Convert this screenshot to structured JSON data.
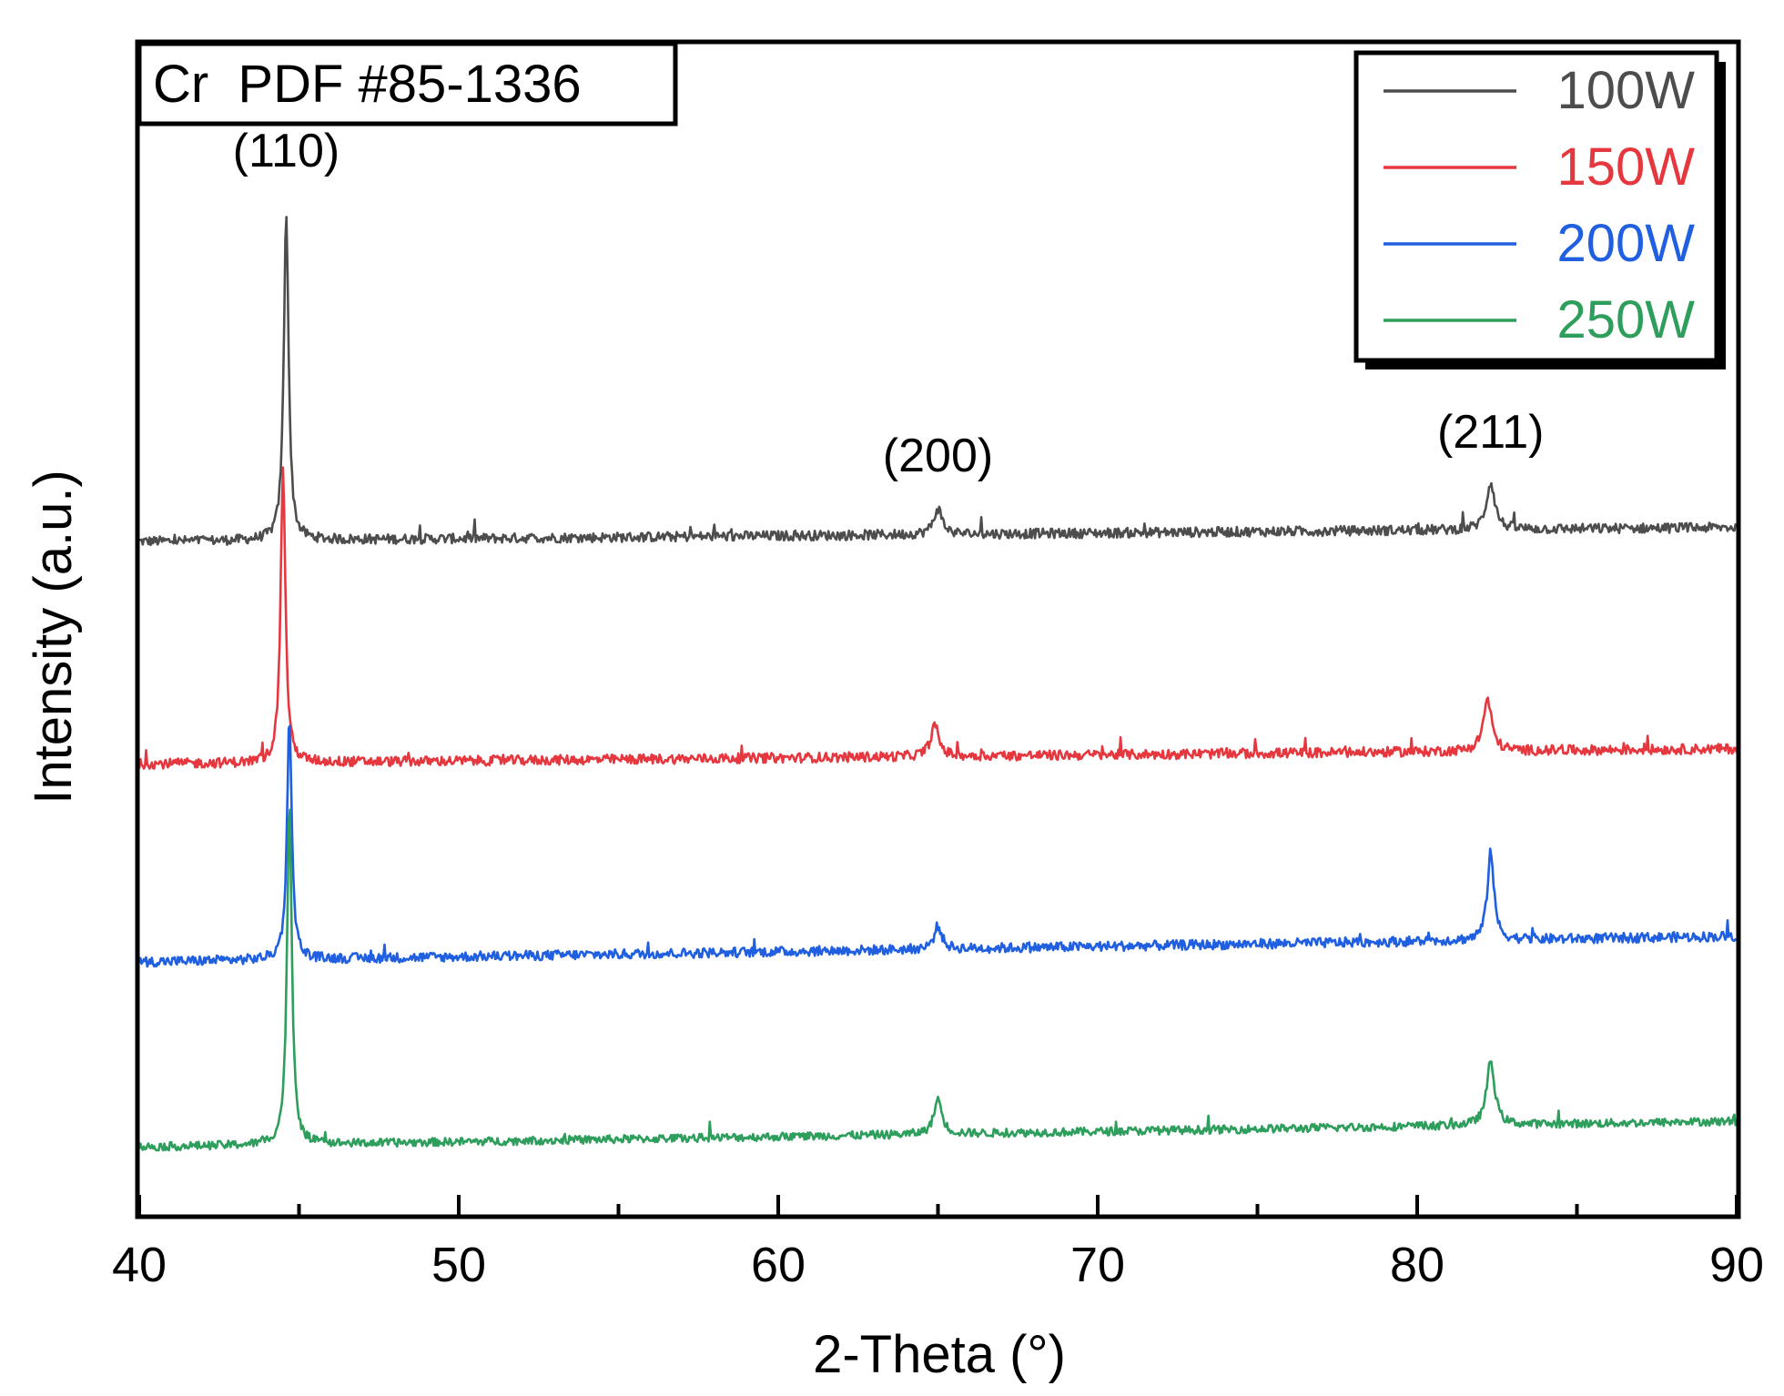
{
  "chart_data": {
    "type": "line",
    "title": "",
    "xlabel": "2-Theta (°)",
    "ylabel": "Intensity (a.u.)",
    "xlim": [
      40,
      90
    ],
    "ylim": [
      0,
      100
    ],
    "x_ticks": [
      40,
      50,
      60,
      70,
      80,
      90
    ],
    "x_tick_labels": [
      "40",
      "50",
      "60",
      "70",
      "80",
      "90"
    ],
    "y_ticks_shown": false,
    "grid": false,
    "legend": {
      "position": "top-right"
    },
    "reference_label": "Cr  PDF #85-1336",
    "series": [
      {
        "name": "100W",
        "color": "#4d4d4d",
        "baseline_start": 57.5,
        "baseline_end": 58.7,
        "noise": 0.6,
        "peaks": [
          {
            "x": 44.6,
            "height": 28.0,
            "width": 0.09
          },
          {
            "x": 65.0,
            "height": 2.2,
            "width": 0.16
          },
          {
            "x": 82.3,
            "height": 4.0,
            "width": 0.16
          }
        ]
      },
      {
        "name": "150W",
        "color": "#e6373f",
        "baseline_start": 38.5,
        "baseline_end": 39.8,
        "noise": 0.6,
        "peaks": [
          {
            "x": 44.5,
            "height": 25.0,
            "width": 0.09
          },
          {
            "x": 64.9,
            "height": 2.6,
            "width": 0.16
          },
          {
            "x": 82.2,
            "height": 4.4,
            "width": 0.16
          }
        ]
      },
      {
        "name": "200W",
        "color": "#1f5fe0",
        "baseline_start": 21.6,
        "baseline_end": 23.8,
        "noise": 0.6,
        "peaks": [
          {
            "x": 44.7,
            "height": 20.5,
            "width": 0.09
          },
          {
            "x": 65.0,
            "height": 2.0,
            "width": 0.14
          },
          {
            "x": 82.3,
            "height": 7.7,
            "width": 0.12
          }
        ]
      },
      {
        "name": "250W",
        "color": "#2e9e5c",
        "baseline_start": 5.8,
        "baseline_end": 8.0,
        "noise": 0.5,
        "peaks": [
          {
            "x": 44.7,
            "height": 29.0,
            "width": 0.09
          },
          {
            "x": 65.0,
            "height": 3.0,
            "width": 0.15
          },
          {
            "x": 82.3,
            "height": 5.5,
            "width": 0.15
          }
        ]
      }
    ],
    "annotations": [
      {
        "text": "(110)",
        "x": 44.6,
        "y": 89.5
      },
      {
        "text": "(200)",
        "x": 65.0,
        "y": 63.5
      },
      {
        "text": "(211)",
        "x": 82.3,
        "y": 65.5
      }
    ]
  }
}
